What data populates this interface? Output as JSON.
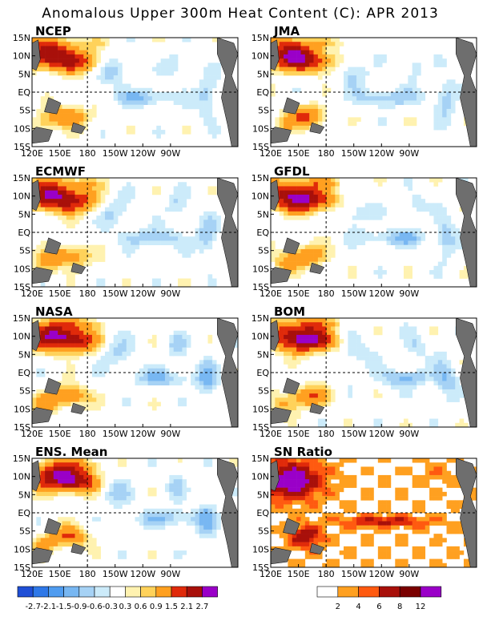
{
  "title": "Anomalous Upper 300m Heat Content (C): APR 2013",
  "colors": {
    "anomaly_palette": [
      "#1f4fd6",
      "#2e78e8",
      "#4f9cf0",
      "#78b7f2",
      "#a6d2f5",
      "#ccebfa",
      "#ffffff",
      "#fff2b0",
      "#ffd25a",
      "#ffa020",
      "#ff5a10",
      "#e02a0a",
      "#a8100a",
      "#7a0000",
      "#9a00c8"
    ],
    "sn_palette": [
      "#ffffff",
      "#ffa020",
      "#ff5a10",
      "#e02a0a",
      "#a8100a",
      "#7a0000",
      "#9a00c8"
    ],
    "land": "#6e6e6e"
  },
  "chart_data": [
    {
      "type": "heatmap",
      "title": "NCEP",
      "pattern": "anomaly",
      "xlabels": [
        "120E",
        "150E",
        "180",
        "150W",
        "120W",
        "90W"
      ],
      "ylabels": [
        "15N",
        "10N",
        "5N",
        "EQ",
        "5S",
        "10S",
        "15S"
      ]
    },
    {
      "type": "heatmap",
      "title": "JMA",
      "pattern": "anomaly",
      "xlabels": [
        "120E",
        "150E",
        "180",
        "150W",
        "120W",
        "90W"
      ],
      "ylabels": [
        "15N",
        "10N",
        "5N",
        "EQ",
        "5S",
        "10S",
        "15S"
      ]
    },
    {
      "type": "heatmap",
      "title": "ECMWF",
      "pattern": "anomaly",
      "xlabels": [
        "120E",
        "150E",
        "180",
        "150W",
        "120W",
        "90W"
      ],
      "ylabels": [
        "15N",
        "10N",
        "5N",
        "EQ",
        "5S",
        "10S",
        "15S"
      ]
    },
    {
      "type": "heatmap",
      "title": "GFDL",
      "pattern": "anomaly",
      "xlabels": [
        "120E",
        "150E",
        "180",
        "150W",
        "120W",
        "90W"
      ],
      "ylabels": [
        "15N",
        "10N",
        "5N",
        "EQ",
        "5S",
        "10S",
        "15S"
      ]
    },
    {
      "type": "heatmap",
      "title": "NASA",
      "pattern": "anomaly",
      "xlabels": [
        "120E",
        "150E",
        "180",
        "150W",
        "120W",
        "90W"
      ],
      "ylabels": [
        "15N",
        "10N",
        "5N",
        "EQ",
        "5S",
        "10S",
        "15S"
      ]
    },
    {
      "type": "heatmap",
      "title": "BOM",
      "pattern": "anomaly",
      "xlabels": [
        "120E",
        "150E",
        "180",
        "150W",
        "120W",
        "90W"
      ],
      "ylabels": [
        "15N",
        "10N",
        "5N",
        "EQ",
        "5S",
        "10S",
        "15S"
      ]
    },
    {
      "type": "heatmap",
      "title": "ENS. Mean",
      "pattern": "anomaly",
      "xlabels": [
        "120E",
        "150E",
        "180",
        "150W",
        "120W",
        "90W"
      ],
      "ylabels": [
        "15N",
        "10N",
        "5N",
        "EQ",
        "5S",
        "10S",
        "15S"
      ]
    },
    {
      "type": "heatmap",
      "title": "SN Ratio",
      "pattern": "sn",
      "xlabels": [
        "120E",
        "150E",
        "180",
        "150W",
        "120W",
        "90W"
      ],
      "ylabels": [
        "15N",
        "10N",
        "5N",
        "EQ",
        "5S",
        "10S",
        "15S"
      ]
    }
  ],
  "legend_anomaly": {
    "labels": [
      "-2.7",
      "-2.1",
      "-1.5",
      "-0.9",
      "-0.6",
      "-0.3",
      "0.3",
      "0.6",
      "0.9",
      "1.5",
      "2.1",
      "2.7"
    ]
  },
  "legend_sn": {
    "labels": [
      "2",
      "4",
      "6",
      "8",
      "12"
    ]
  }
}
